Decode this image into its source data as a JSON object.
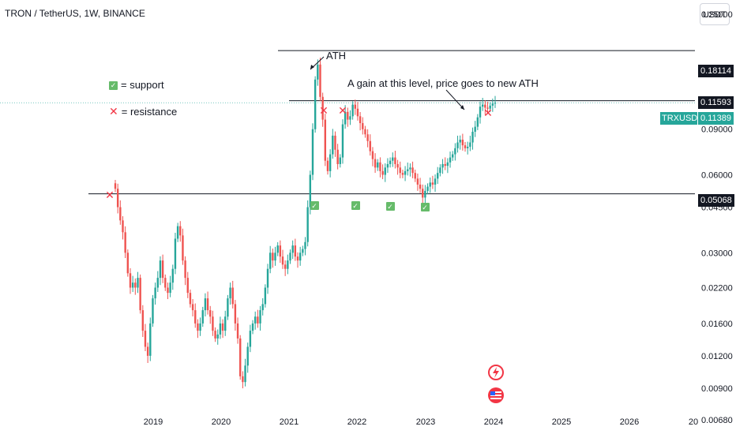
{
  "header": {
    "title": "TRON / TetherUS, 1W, BINANCE",
    "currency_button": "USDT"
  },
  "legend": {
    "support_label": "= support",
    "resistance_label": "= resistance"
  },
  "annotations": {
    "ath": "ATH",
    "gain_note": "A gain at this level, price goes to new ATH"
  },
  "price_labels": {
    "ath_line": "0.18114",
    "resistance_line": "0.11593",
    "symbol": "TRXUSDT",
    "current": "0.11389",
    "support_line": "0.05068"
  },
  "colors": {
    "up": "#26a69a",
    "down": "#ef5350",
    "support_mark": "#66bb6a",
    "resistance_mark": "#f23645",
    "axis_text": "#131722"
  },
  "icons": [
    "flash-icon",
    "us-flag-icon"
  ],
  "chart_data": {
    "type": "candlestick",
    "scale": "log",
    "ylim": [
      0.0062,
      0.28
    ],
    "y_ticks": [
      "0.25000",
      "0.09000",
      "0.06000",
      "0.04500",
      "0.03000",
      "0.02200",
      "0.01600",
      "0.01200",
      "0.00900",
      "0.00680"
    ],
    "x_ticks": [
      "2019",
      "2020",
      "2021",
      "2022",
      "2023",
      "2024",
      "2025",
      "2026",
      "20"
    ],
    "horizontal_lines": [
      {
        "value": 0.18114,
        "label": "ATH"
      },
      {
        "value": 0.11593,
        "label": "resistance"
      },
      {
        "value": 0.05068,
        "label": "support"
      }
    ],
    "series": [
      {
        "approx_weekly_close": [
          0.053,
          0.045,
          0.04,
          0.036,
          0.03,
          0.025,
          0.022,
          0.023,
          0.022,
          0.024,
          0.018,
          0.015,
          0.013,
          0.012,
          0.016,
          0.02,
          0.022,
          0.024,
          0.028,
          0.024,
          0.022,
          0.021,
          0.023,
          0.026,
          0.034,
          0.038,
          0.035,
          0.028,
          0.024,
          0.021,
          0.019,
          0.018,
          0.016,
          0.015,
          0.016,
          0.018,
          0.02,
          0.018,
          0.017,
          0.015,
          0.014,
          0.0145,
          0.016,
          0.015,
          0.017,
          0.02,
          0.022,
          0.019,
          0.016,
          0.014,
          0.01,
          0.0095,
          0.011,
          0.013,
          0.015,
          0.016,
          0.017,
          0.016,
          0.018,
          0.019,
          0.022,
          0.026,
          0.03,
          0.028,
          0.03,
          0.032,
          0.029,
          0.027,
          0.026,
          0.028,
          0.03,
          0.032,
          0.029,
          0.028,
          0.03,
          0.031,
          0.033,
          0.045,
          0.06,
          0.09,
          0.14,
          0.16,
          0.12,
          0.098,
          0.068,
          0.062,
          0.072,
          0.085,
          0.075,
          0.066,
          0.07,
          0.094,
          0.105,
          0.098,
          0.101,
          0.112,
          0.108,
          0.101,
          0.095,
          0.09,
          0.086,
          0.081,
          0.074,
          0.069,
          0.064,
          0.067,
          0.062,
          0.06,
          0.064,
          0.066,
          0.068,
          0.07,
          0.066,
          0.064,
          0.061,
          0.06,
          0.062,
          0.063,
          0.064,
          0.061,
          0.058,
          0.055,
          0.053,
          0.049,
          0.052,
          0.054,
          0.056,
          0.055,
          0.058,
          0.061,
          0.064,
          0.066,
          0.065,
          0.067,
          0.07,
          0.072,
          0.076,
          0.08,
          0.082,
          0.078,
          0.076,
          0.077,
          0.08,
          0.088,
          0.092,
          0.1,
          0.11,
          0.112,
          0.109,
          0.108,
          0.111,
          0.113,
          0.11389
        ]
      }
    ]
  }
}
